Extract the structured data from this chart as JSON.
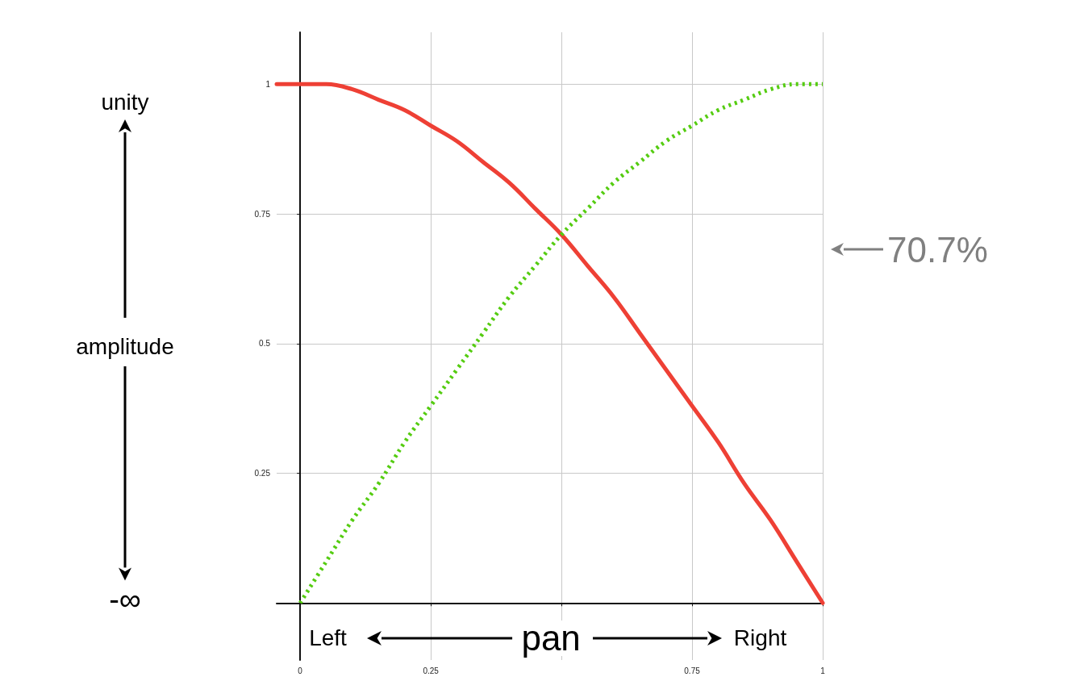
{
  "chart_data": {
    "type": "line",
    "xlabel": "pan",
    "ylabel": "amplitude",
    "series": [
      {
        "color": "#ee4035",
        "line_style": "solid",
        "x": [
          -0.045,
          0,
          0.05,
          0.1,
          0.15,
          0.2,
          0.25,
          0.3,
          0.35,
          0.4,
          0.45,
          0.5,
          0.55,
          0.6,
          0.65,
          0.7,
          0.75,
          0.8,
          0.85,
          0.9,
          0.95,
          1
        ],
        "values": [
          1.0,
          1.0,
          1.0,
          0.99,
          0.97,
          0.95,
          0.92,
          0.89,
          0.85,
          0.81,
          0.76,
          0.71,
          0.65,
          0.59,
          0.52,
          0.45,
          0.38,
          0.31,
          0.23,
          0.16,
          0.08,
          0
        ]
      },
      {
        "color": "#55cc11",
        "line_style": "dotted",
        "x": [
          0,
          0.05,
          0.1,
          0.15,
          0.2,
          0.25,
          0.3,
          0.35,
          0.4,
          0.45,
          0.5,
          0.55,
          0.6,
          0.65,
          0.7,
          0.75,
          0.8,
          0.85,
          0.9,
          0.95,
          1
        ],
        "values": [
          0,
          0.08,
          0.16,
          0.23,
          0.31,
          0.38,
          0.45,
          0.52,
          0.59,
          0.65,
          0.71,
          0.76,
          0.81,
          0.85,
          0.89,
          0.92,
          0.95,
          0.97,
          0.99,
          1.0,
          1.0
        ]
      }
    ],
    "xlim": [
      -0.045,
      1
    ],
    "ylim": [
      -0.11,
      1.1
    ],
    "xticks": [
      0,
      0.25,
      {
        "value": 0.5,
        "label": null
      },
      0.75,
      1
    ],
    "yticks": [
      {
        "value": 0,
        "label": null
      },
      0.25,
      0.5,
      0.75,
      1
    ],
    "grid": true,
    "marker": "none",
    "annotations": [
      "unity",
      "-∞",
      "Left",
      "Right",
      "70.7%"
    ]
  }
}
